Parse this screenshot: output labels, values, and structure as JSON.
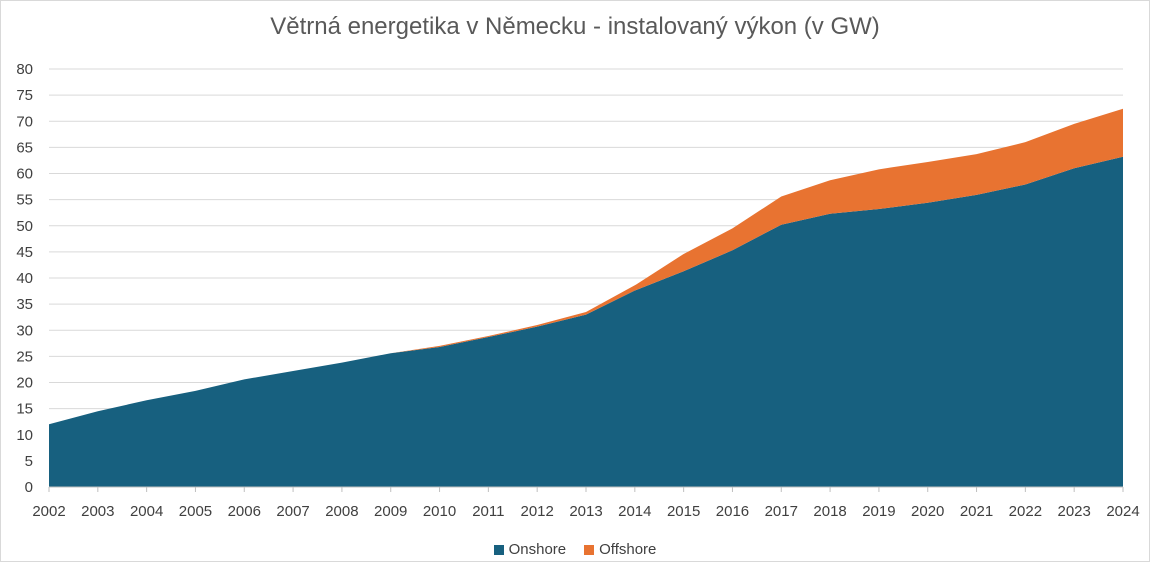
{
  "chart_data": {
    "type": "area",
    "stacked": true,
    "title": "Větrná energetika v Německu - instalovaný výkon (v GW)",
    "xlabel": "",
    "ylabel": "",
    "ylim": [
      0,
      80
    ],
    "yticks": [
      "0",
      "5",
      "10",
      "15",
      "20",
      "25",
      "30",
      "35",
      "40",
      "45",
      "50",
      "55",
      "60",
      "65",
      "70",
      "75",
      "80"
    ],
    "categories": [
      "2002",
      "2003",
      "2004",
      "2005",
      "2006",
      "2007",
      "2008",
      "2009",
      "2010",
      "2011",
      "2012",
      "2013",
      "2014",
      "2015",
      "2016",
      "2017",
      "2018",
      "2019",
      "2020",
      "2021",
      "2022",
      "2023",
      "2024"
    ],
    "series": [
      {
        "name": "Onshore",
        "color": "#17607f",
        "values": [
          12.0,
          14.5,
          16.6,
          18.4,
          20.6,
          22.2,
          23.8,
          25.6,
          26.8,
          28.7,
          30.7,
          33.0,
          37.6,
          41.3,
          45.3,
          50.2,
          52.3,
          53.2,
          54.4,
          55.9,
          57.9,
          61.0,
          63.2
        ]
      },
      {
        "name": "Offshore",
        "color": "#e87331",
        "values": [
          0.0,
          0.0,
          0.0,
          0.0,
          0.0,
          0.0,
          0.0,
          0.0,
          0.2,
          0.2,
          0.3,
          0.5,
          1.0,
          3.3,
          4.2,
          5.4,
          6.4,
          7.6,
          7.8,
          7.8,
          8.1,
          8.5,
          9.2
        ]
      }
    ],
    "grid": true,
    "legend_position": "bottom"
  }
}
